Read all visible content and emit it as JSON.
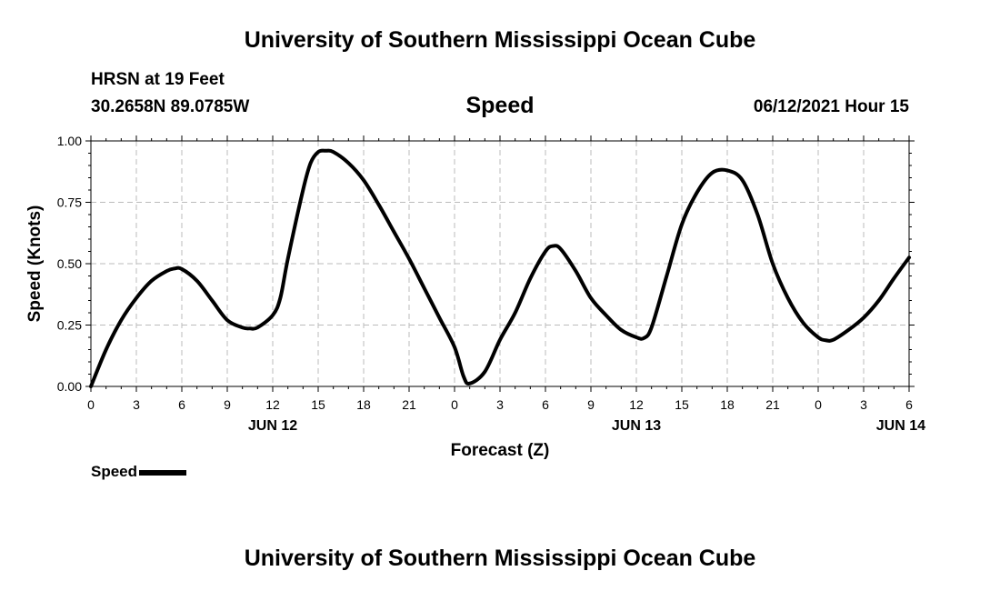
{
  "header": {
    "title": "University of Southern Mississippi Ocean Cube",
    "station": "HRSN at 19 Feet",
    "coords": "30.2658N  89.0785W",
    "variable": "Speed",
    "datetime": "06/12/2021 Hour 15"
  },
  "footer": {
    "title": "University of Southern Mississippi Ocean Cube"
  },
  "legend": {
    "label": "Speed"
  },
  "chart_data": {
    "type": "line",
    "title": "Speed",
    "xlabel": "Forecast (Z)",
    "ylabel": "Speed (Knots)",
    "xlim": [
      0,
      54
    ],
    "ylim": [
      0,
      1
    ],
    "grid": true,
    "x_ticks": [
      0,
      3,
      6,
      9,
      12,
      15,
      18,
      21,
      24,
      27,
      30,
      33,
      36,
      39,
      42,
      45,
      48,
      51,
      54
    ],
    "x_tick_labels": [
      "0",
      "3",
      "6",
      "9",
      "12",
      "15",
      "18",
      "21",
      "0",
      "3",
      "6",
      "9",
      "12",
      "15",
      "18",
      "21",
      "0",
      "3",
      "6"
    ],
    "y_ticks": [
      0,
      0.25,
      0.5,
      0.75,
      1.0
    ],
    "y_tick_labels": [
      "0.00",
      "0.25",
      "0.50",
      "0.75",
      "1.00"
    ],
    "date_labels": [
      {
        "x": 12,
        "text": "JUN 12"
      },
      {
        "x": 36,
        "text": "JUN 13"
      },
      {
        "x": 54,
        "text": "JUN 14"
      }
    ],
    "series": [
      {
        "name": "Speed",
        "color": "#000000",
        "x": [
          0,
          1,
          2,
          3,
          4,
          5,
          5.5,
          6,
          7,
          8,
          9,
          10,
          10.5,
          11,
          12,
          12.5,
          13,
          14,
          14.5,
          15,
          15.5,
          16,
          17,
          18,
          19,
          20,
          21,
          22,
          23,
          24,
          24.6,
          25,
          26,
          27,
          28,
          29,
          30,
          30.5,
          31,
          32,
          33,
          34,
          35,
          36,
          36.5,
          37,
          38,
          39,
          40,
          41,
          42,
          43,
          44,
          45,
          46,
          47,
          48,
          48.5,
          49,
          50,
          51,
          52,
          53,
          54
        ],
        "values": [
          0.0,
          0.15,
          0.27,
          0.36,
          0.43,
          0.47,
          0.48,
          0.478,
          0.43,
          0.35,
          0.27,
          0.24,
          0.236,
          0.24,
          0.29,
          0.36,
          0.52,
          0.8,
          0.91,
          0.955,
          0.96,
          0.955,
          0.91,
          0.84,
          0.74,
          0.63,
          0.52,
          0.4,
          0.28,
          0.16,
          0.04,
          0.012,
          0.06,
          0.19,
          0.3,
          0.44,
          0.55,
          0.572,
          0.56,
          0.47,
          0.36,
          0.29,
          0.23,
          0.2,
          0.197,
          0.24,
          0.45,
          0.66,
          0.79,
          0.87,
          0.88,
          0.84,
          0.7,
          0.5,
          0.36,
          0.26,
          0.2,
          0.188,
          0.19,
          0.23,
          0.28,
          0.35,
          0.44,
          0.525
        ]
      }
    ]
  }
}
